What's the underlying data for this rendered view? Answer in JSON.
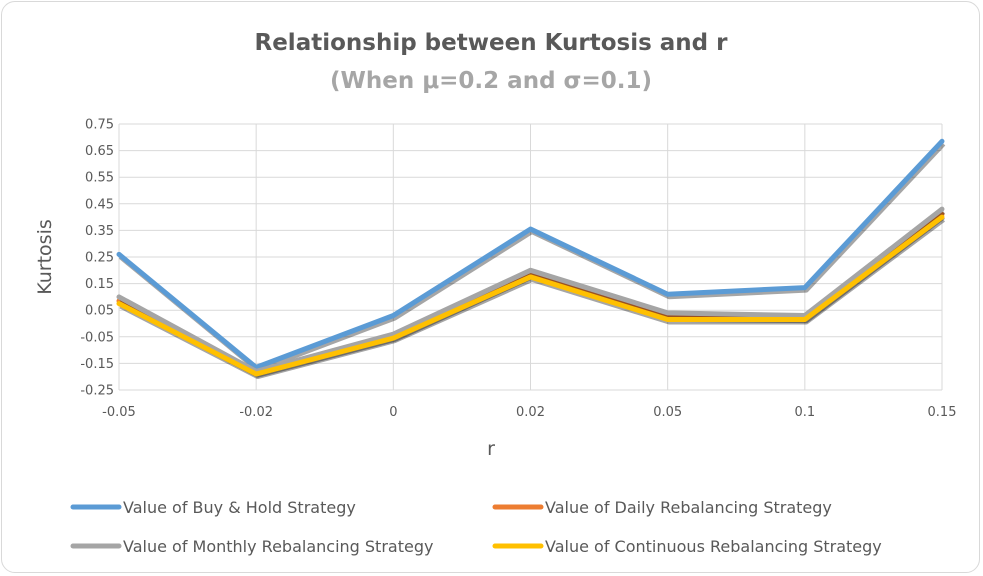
{
  "chart_data": {
    "type": "line",
    "title": "Relationship between Kurtosis and r",
    "subtitle": "(When μ=0.2 and σ=0.1)",
    "xlabel": "r",
    "ylabel": "Kurtosis",
    "categories": [
      "-0.05",
      "-0.02",
      "0",
      "0.02",
      "0.05",
      "0.1",
      "0.15"
    ],
    "ylim": [
      -0.25,
      0.75
    ],
    "yticks": [
      "0.75",
      "0.65",
      "0.55",
      "0.45",
      "0.35",
      "0.25",
      "0.15",
      "0.05",
      "-0.05",
      "-0.15",
      "-0.25"
    ],
    "grid": true,
    "legend_position": "bottom",
    "series": [
      {
        "name": "Value of Buy & Hold Strategy",
        "color": "#5b9bd5",
        "values": [
          0.26,
          -0.165,
          0.03,
          0.355,
          0.11,
          0.135,
          0.685
        ]
      },
      {
        "name": "Value of Daily Rebalancing Strategy",
        "color": "#ed7d31",
        "values": [
          0.085,
          -0.185,
          -0.05,
          0.185,
          0.025,
          0.02,
          0.41
        ]
      },
      {
        "name": "Value of Monthly Rebalancing Strategy",
        "color": "#a5a5a5",
        "values": [
          0.1,
          -0.18,
          -0.04,
          0.2,
          0.04,
          0.03,
          0.43
        ]
      },
      {
        "name": "Value of Continuous Rebalancing Strategy",
        "color": "#ffc000",
        "values": [
          0.075,
          -0.19,
          -0.055,
          0.175,
          0.015,
          0.015,
          0.4
        ]
      }
    ]
  }
}
